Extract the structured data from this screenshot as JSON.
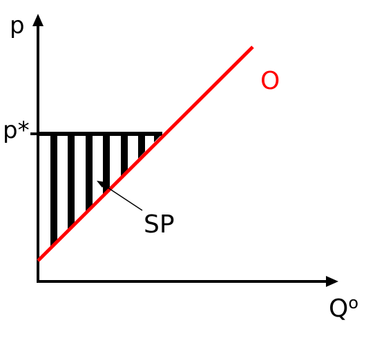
{
  "diagram": {
    "y_axis_label": "p",
    "x_axis_label_base": "Q",
    "x_axis_label_superscript": "o",
    "price_level_label": "p*",
    "curve_label": "O",
    "surplus_label": "SP",
    "colors": {
      "axes": "#000000",
      "curve": "#ff0000",
      "hatching": "#000000",
      "background": "#ffffff"
    }
  }
}
